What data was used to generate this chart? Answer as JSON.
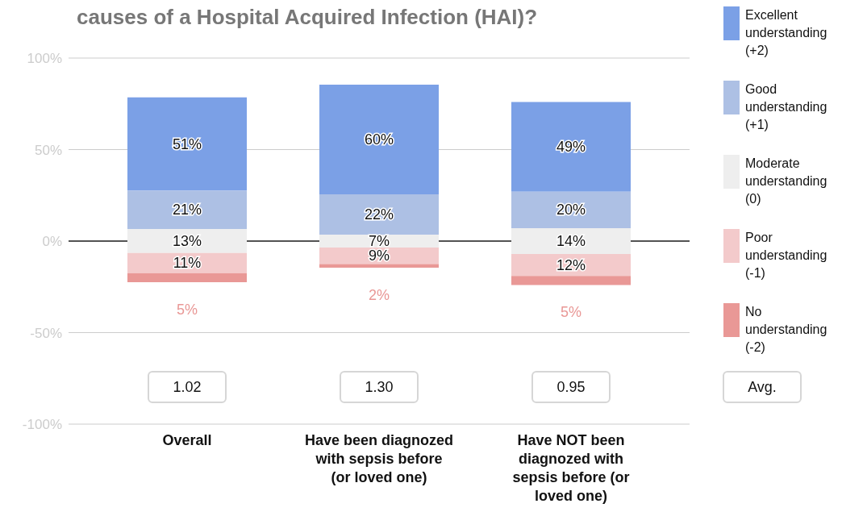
{
  "chart_data": {
    "type": "bar",
    "title": "causes of a Hospital Acquired Infection (HAI)?",
    "categories": [
      "Overall",
      "Have been diagnozed with sepsis before (or loved one)",
      "Have NOT been diagnozed with sepsis before (or loved one)"
    ],
    "series": [
      {
        "name": "Excellent understanding (+2)",
        "color": "#7ba0e6",
        "values": [
          51,
          60,
          49
        ],
        "base": [
          27.5,
          25.5,
          27
        ],
        "value_labels": [
          "51%",
          "60%",
          "49%"
        ]
      },
      {
        "name": "Good understanding (+1)",
        "color": "#adc0e4",
        "values": [
          21,
          22,
          20
        ],
        "base": [
          6.5,
          3.5,
          7
        ],
        "value_labels": [
          "21%",
          "22%",
          "20%"
        ]
      },
      {
        "name": "Moderate understanding (0)",
        "color": "#eeeeee",
        "values": [
          13,
          7,
          14
        ],
        "base": [
          -6.5,
          -3.5,
          -7
        ],
        "value_labels": [
          "13%",
          "7%",
          "14%"
        ]
      },
      {
        "name": "Poor understanding (-1)",
        "color": "#f3cacb",
        "values": [
          11,
          9,
          12
        ],
        "base": [
          -17.5,
          -12.5,
          -19
        ],
        "value_labels": [
          "11%",
          "9%",
          "12%"
        ]
      },
      {
        "name": "No understanding (-2)",
        "color": "#e99896",
        "values": [
          5,
          2,
          5
        ],
        "base": [
          -22.5,
          -14.5,
          -24
        ],
        "value_labels": [
          "5%",
          "2%",
          "5%"
        ]
      }
    ],
    "ylim": [
      -100,
      100
    ],
    "yticks": [
      {
        "value": -100,
        "label": "-100%"
      },
      {
        "value": -50,
        "label": "-50%"
      },
      {
        "value": 0,
        "label": "0%"
      },
      {
        "value": 50,
        "label": "50%"
      },
      {
        "value": 100,
        "label": "100%"
      }
    ],
    "grid": "y",
    "ref_lines": [
      {
        "axis": "y",
        "value": 0,
        "color": "#222222"
      }
    ],
    "legend": "right",
    "annotations": [
      "1.02",
      "1.30",
      "0.95",
      "Avg."
    ]
  }
}
